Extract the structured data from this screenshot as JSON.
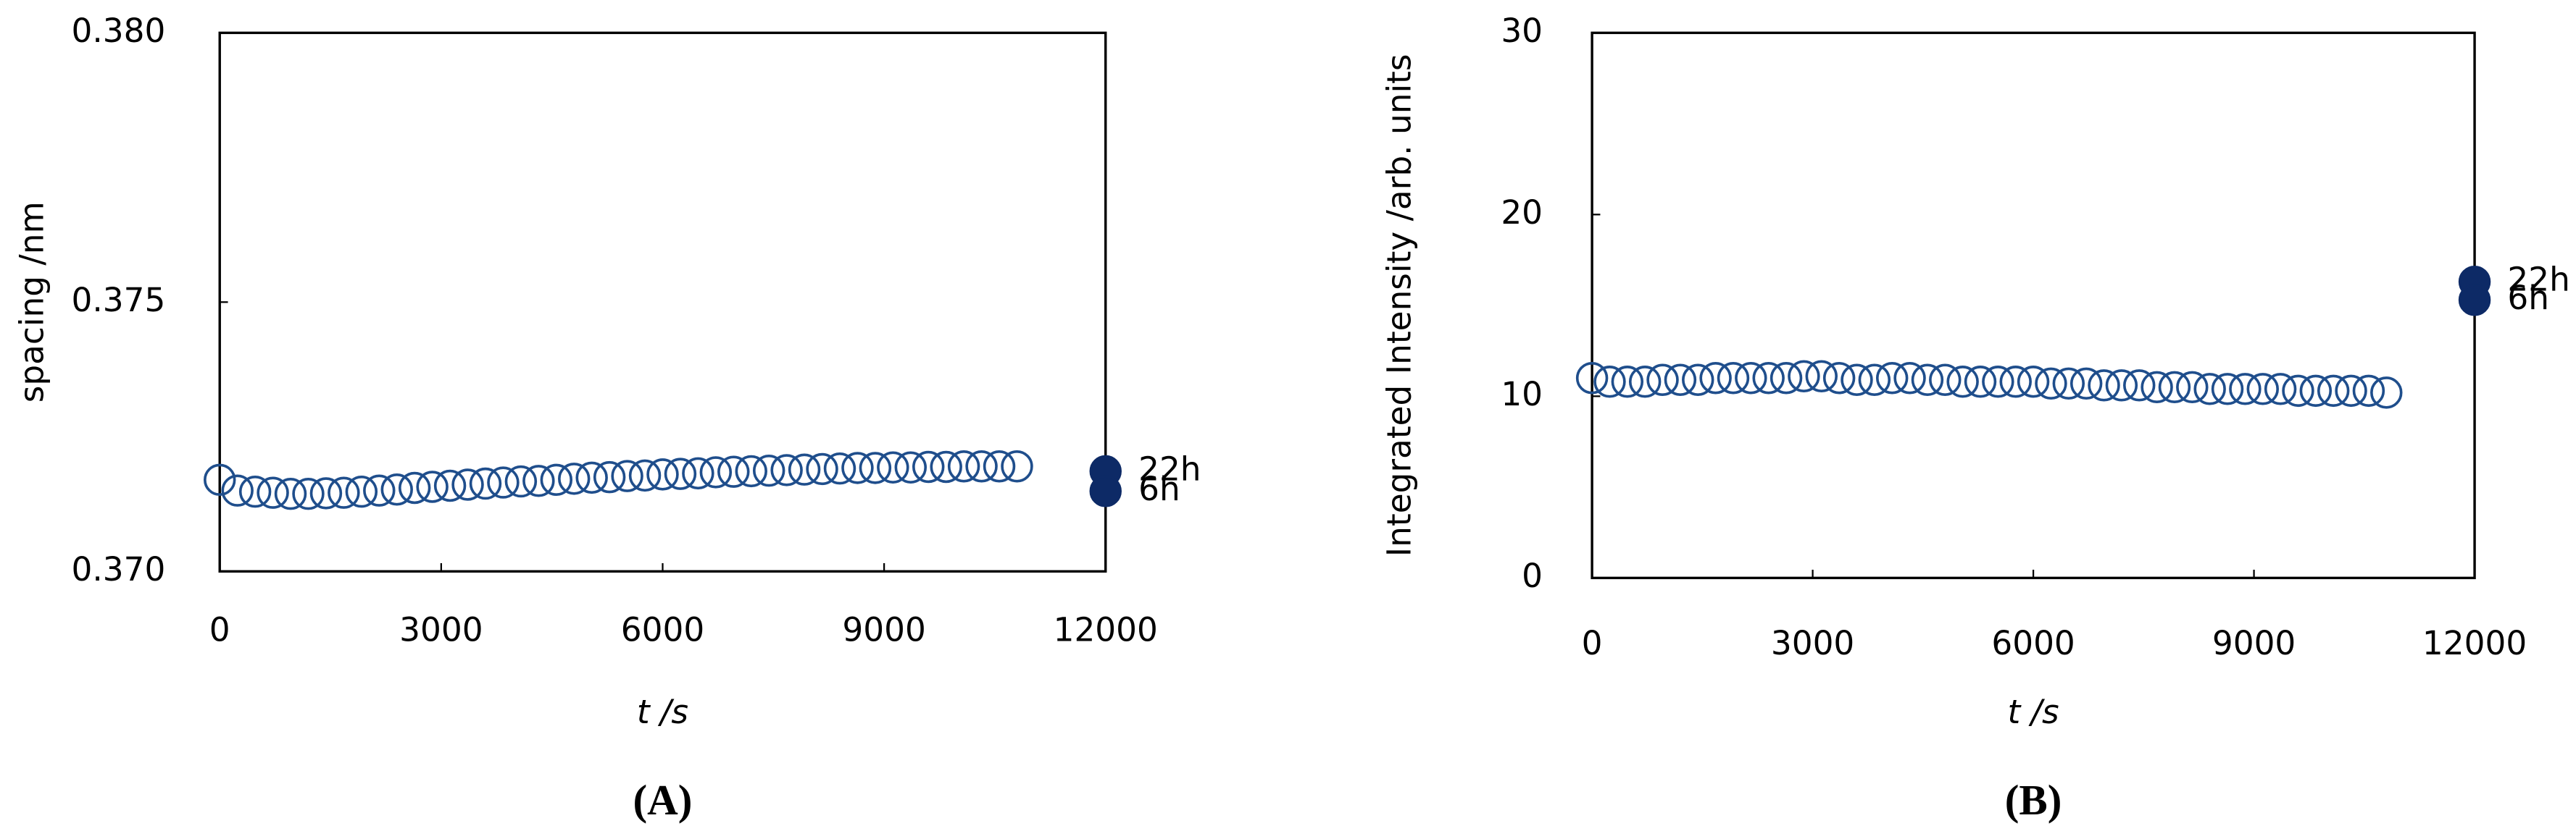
{
  "chart_data": [
    {
      "type": "scatter",
      "panel_label": "(A)",
      "y_label": "spacing /nm",
      "x_label": "t /s",
      "xlim": [
        0,
        12000
      ],
      "xticks": [
        0,
        3000,
        6000,
        9000,
        12000
      ],
      "ylim": [
        0.37,
        0.38
      ],
      "yticks": [
        {
          "value": 0.37,
          "label": "0.370"
        },
        {
          "value": 0.375,
          "label": "0.375"
        },
        {
          "value": 0.38,
          "label": "0.380"
        }
      ],
      "grid": false,
      "series": [
        {
          "color": "#1f4e8c",
          "filled": false,
          "x": [
            0,
            240,
            480,
            720,
            960,
            1200,
            1440,
            1680,
            1920,
            2160,
            2400,
            2640,
            2880,
            3120,
            3360,
            3600,
            3840,
            4080,
            4320,
            4560,
            4800,
            5040,
            5280,
            5520,
            5760,
            6000,
            6240,
            6480,
            6720,
            6960,
            7200,
            7440,
            7680,
            7920,
            8160,
            8400,
            8640,
            8880,
            9120,
            9360,
            9600,
            9840,
            10080,
            10320,
            10560,
            10800
          ],
          "values": [
            0.3717,
            0.3715,
            0.37148,
            0.37146,
            0.37144,
            0.37144,
            0.37145,
            0.37146,
            0.37148,
            0.3715,
            0.37152,
            0.37155,
            0.37157,
            0.37159,
            0.37161,
            0.37163,
            0.37165,
            0.37167,
            0.37168,
            0.3717,
            0.37172,
            0.37174,
            0.37175,
            0.37177,
            0.37178,
            0.3718,
            0.37181,
            0.37182,
            0.37184,
            0.37185,
            0.37186,
            0.37187,
            0.37188,
            0.37189,
            0.3719,
            0.37191,
            0.37192,
            0.37192,
            0.37193,
            0.37193,
            0.37194,
            0.37194,
            0.37195,
            0.37195,
            0.37195,
            0.37195
          ]
        },
        {
          "name": "22h",
          "color": "#0d2a66",
          "filled": true,
          "x": [
            12000
          ],
          "values": [
            0.37186
          ]
        },
        {
          "name": "6h",
          "color": "#0d2a66",
          "filled": true,
          "x": [
            12000
          ],
          "values": [
            0.37149
          ]
        }
      ]
    },
    {
      "type": "scatter",
      "panel_label": "(B)",
      "y_label": "Integrated Intensity /arb. units",
      "x_label": "t /s",
      "xlim": [
        0,
        12000
      ],
      "xticks": [
        0,
        3000,
        6000,
        9000,
        12000
      ],
      "ylim": [
        0,
        30
      ],
      "yticks": [
        0,
        10,
        20,
        30
      ],
      "grid": false,
      "series": [
        {
          "color": "#1f4e8c",
          "filled": false,
          "x": [
            0,
            240,
            480,
            720,
            960,
            1200,
            1440,
            1680,
            1920,
            2160,
            2400,
            2640,
            2880,
            3120,
            3360,
            3600,
            3840,
            4080,
            4320,
            4560,
            4800,
            5040,
            5280,
            5520,
            5760,
            6000,
            6240,
            6480,
            6720,
            6960,
            7200,
            7440,
            7680,
            7920,
            8160,
            8400,
            8640,
            8880,
            9120,
            9360,
            9600,
            9840,
            10080,
            10320,
            10560,
            10800
          ],
          "values": [
            11.0,
            10.8,
            10.8,
            10.8,
            10.9,
            10.9,
            10.9,
            11.0,
            11.0,
            11.0,
            11.0,
            11.0,
            11.1,
            11.1,
            11.0,
            10.9,
            10.9,
            11.0,
            11.0,
            10.9,
            10.9,
            10.8,
            10.8,
            10.8,
            10.8,
            10.8,
            10.7,
            10.7,
            10.7,
            10.6,
            10.6,
            10.6,
            10.5,
            10.5,
            10.5,
            10.4,
            10.4,
            10.4,
            10.4,
            10.4,
            10.3,
            10.3,
            10.3,
            10.3,
            10.3,
            10.2
          ]
        },
        {
          "name": "22h",
          "color": "#0d2a66",
          "filled": true,
          "x": [
            12000
          ],
          "values": [
            16.3
          ]
        },
        {
          "name": "6h",
          "color": "#0d2a66",
          "filled": true,
          "x": [
            12000
          ],
          "values": [
            15.3
          ]
        }
      ]
    }
  ]
}
